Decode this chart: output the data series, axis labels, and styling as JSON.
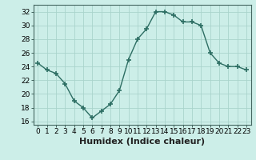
{
  "x": [
    0,
    1,
    2,
    3,
    4,
    5,
    6,
    7,
    8,
    9,
    10,
    11,
    12,
    13,
    14,
    15,
    16,
    17,
    18,
    19,
    20,
    21,
    22,
    23
  ],
  "y": [
    24.5,
    23.5,
    23.0,
    21.5,
    19.0,
    18.0,
    16.5,
    17.5,
    18.5,
    20.5,
    25.0,
    28.0,
    29.5,
    32.0,
    32.0,
    31.5,
    30.5,
    30.5,
    30.0,
    26.0,
    24.5,
    24.0,
    24.0,
    23.5
  ],
  "line_color": "#2d6e63",
  "marker": "+",
  "markersize": 4,
  "markeredgewidth": 1.2,
  "bg_color": "#cceee8",
  "grid_color": "#aad4cc",
  "xlabel": "Humidex (Indice chaleur)",
  "xlabel_fontsize": 8,
  "tick_fontsize": 6.5,
  "ylim": [
    15.5,
    33.0
  ],
  "xlim": [
    -0.5,
    23.5
  ],
  "yticks": [
    16,
    18,
    20,
    22,
    24,
    26,
    28,
    30,
    32
  ],
  "xticks": [
    0,
    1,
    2,
    3,
    4,
    5,
    6,
    7,
    8,
    9,
    10,
    11,
    12,
    13,
    14,
    15,
    16,
    17,
    18,
    19,
    20,
    21,
    22,
    23
  ]
}
